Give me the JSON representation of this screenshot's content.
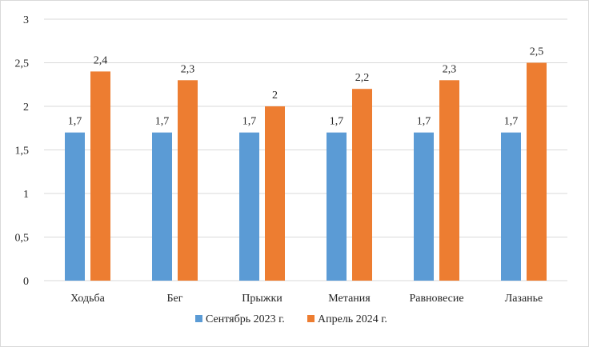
{
  "chart_data": {
    "type": "bar",
    "categories": [
      "Ходьба",
      "Бег",
      "Прыжки",
      "Метания",
      "Равновесие",
      "Лазанье"
    ],
    "series": [
      {
        "name": "Сентябрь 2023 г.",
        "color": "#5b9bd5",
        "values": [
          1.7,
          1.7,
          1.7,
          1.7,
          1.7,
          1.7
        ],
        "labels": [
          "1,7",
          "1,7",
          "1,7",
          "1,7",
          "1,7",
          "1,7"
        ]
      },
      {
        "name": "Апрель 2024 г.",
        "color": "#ed7d31",
        "values": [
          2.4,
          2.3,
          2.0,
          2.2,
          2.3,
          2.5
        ],
        "labels": [
          "2,4",
          "2,3",
          "2",
          "2,2",
          "2,3",
          "2,5"
        ]
      }
    ],
    "ylim": [
      0,
      3
    ],
    "yticks": [
      0,
      0.5,
      1,
      1.5,
      2,
      2.5,
      3
    ],
    "ytick_labels": [
      "0",
      "0,5",
      "1",
      "1,5",
      "2",
      "2,5",
      "3"
    ],
    "grid": true,
    "legend_position": "bottom",
    "gridline_color": "#d9d9d9",
    "title": "",
    "xlabel": "",
    "ylabel": ""
  }
}
